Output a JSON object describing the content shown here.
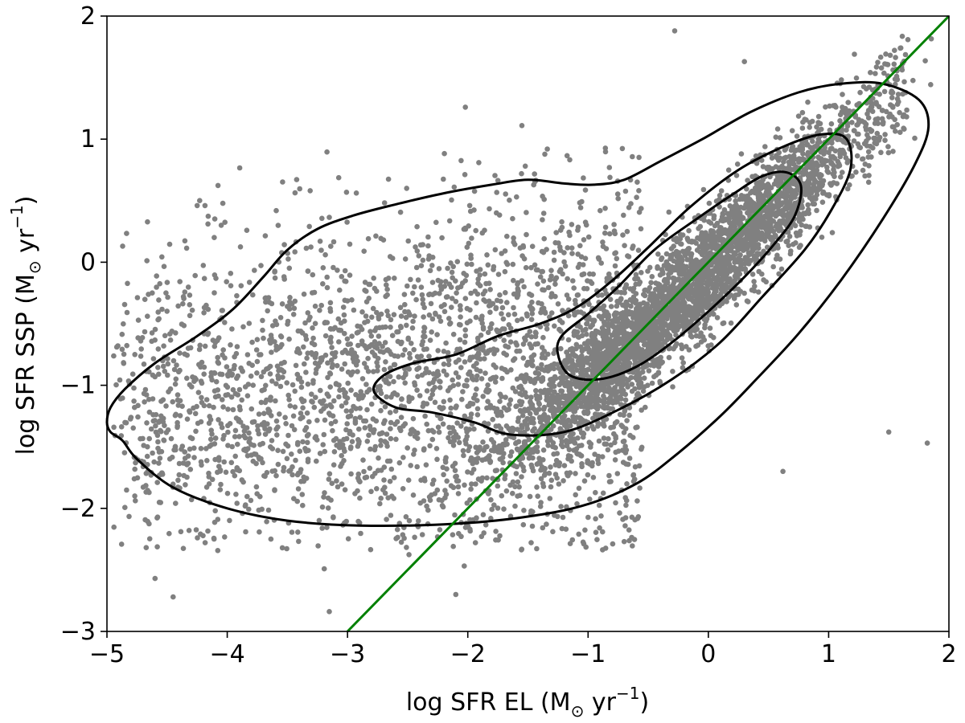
{
  "chart_data": {
    "type": "scatter",
    "title": "",
    "xlabel": {
      "main": "log SFR EL (M",
      "sun": "⊙",
      "unit": " yr",
      "exp": "−1",
      "close": ")"
    },
    "ylabel": {
      "main": "log SFR SSP (M",
      "sun": "⊙",
      "unit": " yr",
      "exp": "−1",
      "close": ")"
    },
    "xlim": [
      -5,
      2
    ],
    "ylim": [
      -3,
      2
    ],
    "x_ticks": [
      -5,
      -4,
      -3,
      -2,
      -1,
      0,
      1,
      2
    ],
    "x_tick_labels": [
      "−5",
      "−4",
      "−3",
      "−2",
      "−1",
      "0",
      "1",
      "2"
    ],
    "y_ticks": [
      -3,
      -2,
      -1,
      0,
      1,
      2
    ],
    "y_tick_labels": [
      "−3",
      "−2",
      "−1",
      "0",
      "1",
      "2"
    ],
    "grid": false,
    "colors": {
      "points": "#808080",
      "contours": "#000000",
      "line": "#008000"
    },
    "scatter": {
      "description_count": 6000,
      "relation": "points cluster densely along y ≈ x near (-0.2,-0.1); a broad lower-density spread extends to x≈-5, y≈-1.2",
      "outliers": [
        {
          "x": -0.28,
          "y": 1.88
        },
        {
          "x": 0.3,
          "y": 1.63
        },
        {
          "x": 1.82,
          "y": -1.47
        },
        {
          "x": 1.5,
          "y": -1.38
        },
        {
          "x": -2.1,
          "y": -2.7
        },
        {
          "x": -4.45,
          "y": -2.72
        },
        {
          "x": -4.6,
          "y": -2.57
        },
        {
          "x": 0.62,
          "y": -1.7
        },
        {
          "x": -0.7,
          "y": -2.27
        },
        {
          "x": -4.05,
          "y": 0.3
        },
        {
          "x": -4.25,
          "y": 0.46
        },
        {
          "x": -2.02,
          "y": 1.26
        },
        {
          "x": -1.55,
          "y": 1.11
        }
      ]
    },
    "contours": [
      {
        "level": "outer",
        "points": [
          [
            -5.0,
            -1.3
          ],
          [
            -4.97,
            -1.18
          ],
          [
            -4.85,
            -1.03
          ],
          [
            -4.6,
            -0.82
          ],
          [
            -4.25,
            -0.6
          ],
          [
            -3.95,
            -0.38
          ],
          [
            -3.7,
            -0.12
          ],
          [
            -3.5,
            0.1
          ],
          [
            -3.25,
            0.27
          ],
          [
            -2.95,
            0.38
          ],
          [
            -2.6,
            0.47
          ],
          [
            -2.2,
            0.56
          ],
          [
            -1.8,
            0.63
          ],
          [
            -1.5,
            0.67
          ],
          [
            -1.2,
            0.64
          ],
          [
            -0.95,
            0.63
          ],
          [
            -0.7,
            0.67
          ],
          [
            -0.4,
            0.82
          ],
          [
            -0.05,
            1.0
          ],
          [
            0.35,
            1.22
          ],
          [
            0.75,
            1.38
          ],
          [
            1.1,
            1.45
          ],
          [
            1.45,
            1.45
          ],
          [
            1.75,
            1.32
          ],
          [
            1.83,
            1.1
          ],
          [
            1.72,
            0.8
          ],
          [
            1.45,
            0.35
          ],
          [
            1.1,
            -0.15
          ],
          [
            0.75,
            -0.58
          ],
          [
            0.4,
            -0.95
          ],
          [
            0.1,
            -1.25
          ],
          [
            -0.25,
            -1.55
          ],
          [
            -0.6,
            -1.8
          ],
          [
            -1.05,
            -1.98
          ],
          [
            -1.6,
            -2.08
          ],
          [
            -2.2,
            -2.13
          ],
          [
            -2.9,
            -2.14
          ],
          [
            -3.5,
            -2.1
          ],
          [
            -4.0,
            -2.0
          ],
          [
            -4.45,
            -1.83
          ],
          [
            -4.75,
            -1.6
          ],
          [
            -4.87,
            -1.45
          ],
          [
            -4.97,
            -1.38
          ],
          [
            -5.0,
            -1.3
          ]
        ]
      },
      {
        "level": "middle",
        "points": [
          [
            -2.78,
            -1.05
          ],
          [
            -2.7,
            -0.92
          ],
          [
            -2.45,
            -0.82
          ],
          [
            -2.1,
            -0.75
          ],
          [
            -1.75,
            -0.6
          ],
          [
            -1.4,
            -0.5
          ],
          [
            -1.1,
            -0.37
          ],
          [
            -0.8,
            -0.15
          ],
          [
            -0.5,
            0.12
          ],
          [
            -0.15,
            0.45
          ],
          [
            0.25,
            0.75
          ],
          [
            0.65,
            0.95
          ],
          [
            0.95,
            1.04
          ],
          [
            1.15,
            1.0
          ],
          [
            1.18,
            0.75
          ],
          [
            1.02,
            0.42
          ],
          [
            0.8,
            0.1
          ],
          [
            0.45,
            -0.28
          ],
          [
            0.1,
            -0.65
          ],
          [
            -0.3,
            -0.95
          ],
          [
            -0.75,
            -1.2
          ],
          [
            -1.2,
            -1.38
          ],
          [
            -1.65,
            -1.4
          ],
          [
            -1.95,
            -1.3
          ],
          [
            -2.3,
            -1.22
          ],
          [
            -2.6,
            -1.18
          ],
          [
            -2.78,
            -1.05
          ]
        ]
      },
      {
        "level": "inner",
        "points": [
          [
            -1.25,
            -0.75
          ],
          [
            -1.22,
            -0.6
          ],
          [
            -1.0,
            -0.42
          ],
          [
            -0.75,
            -0.2
          ],
          [
            -0.45,
            0.1
          ],
          [
            -0.1,
            0.35
          ],
          [
            0.2,
            0.55
          ],
          [
            0.45,
            0.7
          ],
          [
            0.65,
            0.73
          ],
          [
            0.77,
            0.62
          ],
          [
            0.72,
            0.38
          ],
          [
            0.55,
            0.15
          ],
          [
            0.3,
            -0.12
          ],
          [
            0.0,
            -0.4
          ],
          [
            -0.3,
            -0.65
          ],
          [
            -0.6,
            -0.85
          ],
          [
            -0.9,
            -0.95
          ],
          [
            -1.15,
            -0.92
          ],
          [
            -1.25,
            -0.75
          ]
        ]
      }
    ],
    "reference_line": {
      "x": [
        -3,
        2
      ],
      "y": [
        -3,
        2
      ]
    }
  }
}
